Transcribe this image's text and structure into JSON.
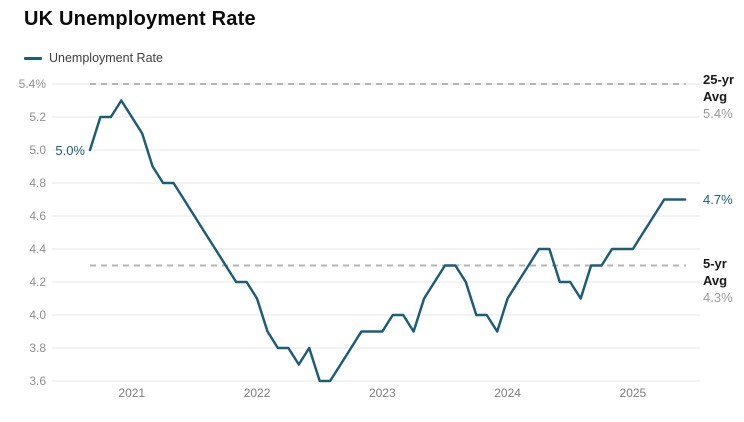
{
  "header": {
    "title": "UK Unemployment Rate"
  },
  "chart_data": {
    "type": "line",
    "title": "UK Unemployment Rate",
    "unit": "%",
    "legend_position": "top-left",
    "grid": "horizontal",
    "x_months": [
      "2020-09",
      "2020-10",
      "2020-11",
      "2020-12",
      "2021-01",
      "2021-02",
      "2021-03",
      "2021-04",
      "2021-05",
      "2021-06",
      "2021-07",
      "2021-08",
      "2021-09",
      "2021-10",
      "2021-11",
      "2021-12",
      "2022-01",
      "2022-02",
      "2022-03",
      "2022-04",
      "2022-05",
      "2022-06",
      "2022-07",
      "2022-08",
      "2022-09",
      "2022-10",
      "2022-11",
      "2022-12",
      "2023-01",
      "2023-02",
      "2023-03",
      "2023-04",
      "2023-05",
      "2023-06",
      "2023-07",
      "2023-08",
      "2023-09",
      "2023-10",
      "2023-11",
      "2023-12",
      "2024-01",
      "2024-02",
      "2024-03",
      "2024-04",
      "2024-05",
      "2024-06",
      "2024-07",
      "2024-08",
      "2024-09",
      "2024-10",
      "2024-11",
      "2024-12",
      "2025-01",
      "2025-02",
      "2025-03",
      "2025-04",
      "2025-05",
      "2025-06"
    ],
    "series": [
      {
        "name": "Unemployment Rate",
        "color": "#1c5e78",
        "values": [
          5.0,
          5.2,
          5.2,
          5.3,
          5.2,
          5.1,
          4.9,
          4.8,
          4.8,
          4.7,
          4.6,
          4.5,
          4.4,
          4.3,
          4.2,
          4.2,
          4.1,
          3.9,
          3.8,
          3.8,
          3.7,
          3.8,
          3.6,
          3.6,
          3.7,
          3.8,
          3.9,
          3.9,
          3.9,
          4.0,
          4.0,
          3.9,
          4.1,
          4.2,
          4.3,
          4.3,
          4.2,
          4.0,
          4.0,
          3.9,
          4.1,
          4.2,
          4.3,
          4.4,
          4.4,
          4.2,
          4.2,
          4.1,
          4.3,
          4.3,
          4.4,
          4.4,
          4.4,
          4.5,
          4.6,
          4.7,
          4.7,
          4.7
        ]
      }
    ],
    "x_tick_labels": [
      "2021",
      "2022",
      "2023",
      "2024",
      "2025"
    ],
    "x_tick_month_index": [
      4,
      16,
      28,
      40,
      52
    ],
    "y_ticks": [
      {
        "value": 5.4,
        "label": "5.4%"
      },
      {
        "value": 5.2,
        "label": "5.2"
      },
      {
        "value": 5.0,
        "label": "5.0"
      },
      {
        "value": 4.8,
        "label": "4.8"
      },
      {
        "value": 4.6,
        "label": "4.6"
      },
      {
        "value": 4.4,
        "label": "4.4"
      },
      {
        "value": 4.2,
        "label": "4.2"
      },
      {
        "value": 4.0,
        "label": "4.0"
      },
      {
        "value": 3.8,
        "label": "3.8"
      },
      {
        "value": 3.6,
        "label": "3.6"
      }
    ],
    "y_range": [
      3.6,
      5.4
    ],
    "reference_lines": [
      {
        "value": 5.4,
        "label_line1": "25-yr",
        "label_line2": "Avg",
        "value_label": "5.4%",
        "style": "dashed"
      },
      {
        "value": 4.3,
        "label_line1": "5-yr",
        "label_line2": "Avg",
        "value_label": "4.3%",
        "style": "dashed"
      }
    ],
    "point_labels": {
      "first": {
        "month": "2020-09",
        "value": 5.0,
        "label": "5.0%"
      },
      "last": {
        "month": "2025-06",
        "value": 4.7,
        "label": "4.7%"
      }
    },
    "colors": {
      "line": "#1c5e78",
      "grid": "#e7e7e7",
      "dashed": "#b5b5b5",
      "y_tick_text": "#8f8f8f",
      "x_tick_text": "#7d7d7d",
      "annotation_bold": "#1a1a1a",
      "annotation_value": "#9b9b9b",
      "title": "#0a0a0a"
    }
  }
}
